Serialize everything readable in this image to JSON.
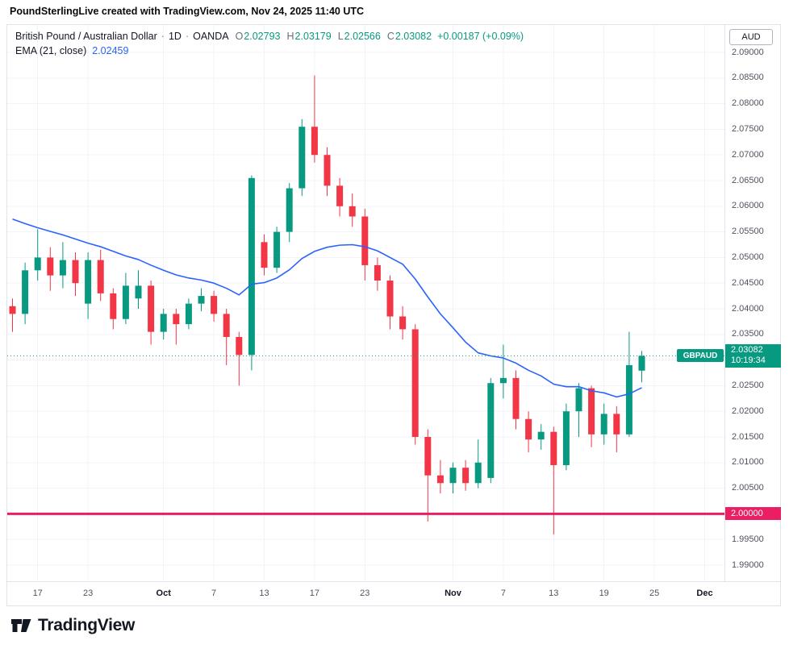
{
  "header": {
    "attribution": "PoundSterlingLive created with TradingView.com, Nov 24, 2025 11:40 UTC"
  },
  "legend": {
    "title": "British Pound / Australian Dollar",
    "separator": "·",
    "interval": "1D",
    "exchange": "OANDA",
    "open_label": "O",
    "open": "2.02793",
    "high_label": "H",
    "high": "2.03179",
    "low_label": "L",
    "low": "2.02566",
    "close_label": "C",
    "close": "2.03082",
    "change": "+0.00187 (+0.09%)",
    "ema_label": "EMA (21, close)",
    "ema_value": "2.02459"
  },
  "axis": {
    "currency": "AUD",
    "price_badge": {
      "symbol": "GBPAUD",
      "price": "2.03082",
      "countdown": "10:19:34"
    },
    "level_badge": "2.00000"
  },
  "footer": {
    "brand": "TradingView",
    "logo_icon": "tradingview-logo"
  },
  "colors": {
    "up": "#089981",
    "down": "#F23645",
    "ema": "#2962FF",
    "level_line": "#E91E63",
    "grid": "#F0F3FA",
    "dotted": "#089981"
  },
  "chart_data": {
    "type": "candlestick",
    "title": "British Pound / Australian Dollar",
    "symbol": "GBPAUD",
    "interval": "1D",
    "exchange": "OANDA",
    "ema_period": 21,
    "last_price": 2.03082,
    "level_line": 2.0,
    "y_axis": {
      "min": 1.99,
      "max": 2.09,
      "step": 0.005,
      "labels": [
        "2.09000",
        "2.08500",
        "2.08000",
        "2.07500",
        "2.07000",
        "2.06500",
        "2.06000",
        "2.05500",
        "2.05000",
        "2.04500",
        "2.04000",
        "2.03500",
        "2.03000",
        "2.02500",
        "2.02000",
        "2.01500",
        "2.01000",
        "2.00500",
        "2.00000",
        "1.99500",
        "1.99000"
      ]
    },
    "time_ticks": [
      {
        "label": "17",
        "i": 2
      },
      {
        "label": "23",
        "i": 6
      },
      {
        "label": "Oct",
        "i": 12,
        "major": true
      },
      {
        "label": "7",
        "i": 16
      },
      {
        "label": "13",
        "i": 20
      },
      {
        "label": "17",
        "i": 24
      },
      {
        "label": "23",
        "i": 28
      },
      {
        "label": "Nov",
        "i": 35,
        "major": true
      },
      {
        "label": "7",
        "i": 39
      },
      {
        "label": "13",
        "i": 43
      },
      {
        "label": "19",
        "i": 47
      },
      {
        "label": "25",
        "i": 51
      },
      {
        "label": "Dec",
        "i": 55,
        "major": true
      }
    ],
    "candles": [
      {
        "d": "Sep 15",
        "o": 2.0405,
        "h": 2.042,
        "l": 2.0355,
        "c": 2.039
      },
      {
        "d": "Sep 16",
        "o": 2.039,
        "h": 2.049,
        "l": 2.037,
        "c": 2.0475
      },
      {
        "d": "Sep 17",
        "o": 2.0475,
        "h": 2.0555,
        "l": 2.0455,
        "c": 2.05
      },
      {
        "d": "Sep 18",
        "o": 2.05,
        "h": 2.052,
        "l": 2.0435,
        "c": 2.0465
      },
      {
        "d": "Sep 19",
        "o": 2.0465,
        "h": 2.053,
        "l": 2.044,
        "c": 2.0495
      },
      {
        "d": "Sep 22",
        "o": 2.0495,
        "h": 2.051,
        "l": 2.0425,
        "c": 2.045
      },
      {
        "d": "Sep 23",
        "o": 2.041,
        "h": 2.051,
        "l": 2.038,
        "c": 2.0495
      },
      {
        "d": "Sep 24",
        "o": 2.0495,
        "h": 2.0515,
        "l": 2.0415,
        "c": 2.043
      },
      {
        "d": "Sep 25",
        "o": 2.043,
        "h": 2.044,
        "l": 2.036,
        "c": 2.038
      },
      {
        "d": "Sep 26",
        "o": 2.038,
        "h": 2.047,
        "l": 2.037,
        "c": 2.0445
      },
      {
        "d": "Sep 29",
        "o": 2.042,
        "h": 2.0475,
        "l": 2.04,
        "c": 2.0445
      },
      {
        "d": "Sep 30",
        "o": 2.0445,
        "h": 2.0455,
        "l": 2.033,
        "c": 2.0355
      },
      {
        "d": "Oct 1",
        "o": 2.0355,
        "h": 2.04,
        "l": 2.034,
        "c": 2.039
      },
      {
        "d": "Oct 2",
        "o": 2.039,
        "h": 2.04,
        "l": 2.033,
        "c": 2.037
      },
      {
        "d": "Oct 3",
        "o": 2.037,
        "h": 2.042,
        "l": 2.036,
        "c": 2.041
      },
      {
        "d": "Oct 6",
        "o": 2.041,
        "h": 2.044,
        "l": 2.0395,
        "c": 2.0425
      },
      {
        "d": "Oct 7",
        "o": 2.0425,
        "h": 2.0435,
        "l": 2.0375,
        "c": 2.039
      },
      {
        "d": "Oct 8",
        "o": 2.039,
        "h": 2.04,
        "l": 2.029,
        "c": 2.0345
      },
      {
        "d": "Oct 9",
        "o": 2.0345,
        "h": 2.0355,
        "l": 2.025,
        "c": 2.031
      },
      {
        "d": "Oct 10",
        "o": 2.031,
        "h": 2.066,
        "l": 2.028,
        "c": 2.0655
      },
      {
        "d": "Oct 13",
        "o": 2.053,
        "h": 2.0545,
        "l": 2.0465,
        "c": 2.048
      },
      {
        "d": "Oct 14",
        "o": 2.048,
        "h": 2.056,
        "l": 2.047,
        "c": 2.055
      },
      {
        "d": "Oct 15",
        "o": 2.055,
        "h": 2.0645,
        "l": 2.053,
        "c": 2.0635
      },
      {
        "d": "Oct 16",
        "o": 2.0635,
        "h": 2.077,
        "l": 2.062,
        "c": 2.0755
      },
      {
        "d": "Oct 17",
        "o": 2.0755,
        "h": 2.0855,
        "l": 2.0685,
        "c": 2.07
      },
      {
        "d": "Oct 20",
        "o": 2.07,
        "h": 2.0715,
        "l": 2.062,
        "c": 2.064
      },
      {
        "d": "Oct 21",
        "o": 2.064,
        "h": 2.0655,
        "l": 2.058,
        "c": 2.06
      },
      {
        "d": "Oct 22",
        "o": 2.06,
        "h": 2.0625,
        "l": 2.056,
        "c": 2.058
      },
      {
        "d": "Oct 23",
        "o": 2.058,
        "h": 2.0595,
        "l": 2.0455,
        "c": 2.0485
      },
      {
        "d": "Oct 24",
        "o": 2.0485,
        "h": 2.05,
        "l": 2.0435,
        "c": 2.0455
      },
      {
        "d": "Oct 27",
        "o": 2.0455,
        "h": 2.0465,
        "l": 2.036,
        "c": 2.0385
      },
      {
        "d": "Oct 28",
        "o": 2.0385,
        "h": 2.0405,
        "l": 2.034,
        "c": 2.036
      },
      {
        "d": "Oct 29",
        "o": 2.036,
        "h": 2.037,
        "l": 2.0135,
        "c": 2.015
      },
      {
        "d": "Oct 30",
        "o": 2.015,
        "h": 2.0165,
        "l": 1.9985,
        "c": 2.0075
      },
      {
        "d": "Oct 31",
        "o": 2.0075,
        "h": 2.0105,
        "l": 2.004,
        "c": 2.006
      },
      {
        "d": "Nov 3",
        "o": 2.006,
        "h": 2.01,
        "l": 2.004,
        "c": 2.009
      },
      {
        "d": "Nov 4",
        "o": 2.009,
        "h": 2.0105,
        "l": 2.0045,
        "c": 2.006
      },
      {
        "d": "Nov 5",
        "o": 2.006,
        "h": 2.0145,
        "l": 2.005,
        "c": 2.01
      },
      {
        "d": "Nov 6",
        "o": 2.007,
        "h": 2.0265,
        "l": 2.006,
        "c": 2.0255
      },
      {
        "d": "Nov 7",
        "o": 2.0255,
        "h": 2.033,
        "l": 2.0225,
        "c": 2.0265
      },
      {
        "d": "Nov 10",
        "o": 2.0265,
        "h": 2.028,
        "l": 2.0165,
        "c": 2.0185
      },
      {
        "d": "Nov 11",
        "o": 2.0185,
        "h": 2.02,
        "l": 2.012,
        "c": 2.0145
      },
      {
        "d": "Nov 12",
        "o": 2.0145,
        "h": 2.0175,
        "l": 2.0125,
        "c": 2.016
      },
      {
        "d": "Nov 13",
        "o": 2.016,
        "h": 2.017,
        "l": 1.996,
        "c": 2.0095
      },
      {
        "d": "Nov 14",
        "o": 2.0095,
        "h": 2.0215,
        "l": 2.0085,
        "c": 2.02
      },
      {
        "d": "Nov 17",
        "o": 2.02,
        "h": 2.0255,
        "l": 2.015,
        "c": 2.0245
      },
      {
        "d": "Nov 18",
        "o": 2.0245,
        "h": 2.025,
        "l": 2.013,
        "c": 2.0155
      },
      {
        "d": "Nov 19",
        "o": 2.0155,
        "h": 2.0215,
        "l": 2.0135,
        "c": 2.0195
      },
      {
        "d": "Nov 20",
        "o": 2.0195,
        "h": 2.021,
        "l": 2.012,
        "c": 2.0155
      },
      {
        "d": "Nov 21",
        "o": 2.0155,
        "h": 2.0355,
        "l": 2.015,
        "c": 2.029
      },
      {
        "d": "Nov 24",
        "o": 2.02793,
        "h": 2.03179,
        "l": 2.02566,
        "c": 2.03082
      }
    ],
    "ema": [
      2.0575,
      2.0566,
      2.0558,
      2.0551,
      2.0544,
      2.0536,
      2.0528,
      2.0521,
      2.0512,
      2.0503,
      2.0496,
      2.0485,
      2.0475,
      2.0466,
      2.046,
      2.0456,
      2.045,
      2.044,
      2.0427,
      2.0448,
      2.0451,
      2.046,
      2.0476,
      2.0498,
      2.0512,
      2.052,
      2.0524,
      2.0525,
      2.0521,
      2.0513,
      2.05,
      2.0487,
      2.0458,
      2.0423,
      2.039,
      2.0363,
      2.0335,
      2.0314,
      2.0308,
      2.0304,
      2.0294,
      2.028,
      2.0269,
      2.0253,
      2.0248,
      2.0248,
      2.024,
      2.0236,
      2.0228,
      2.0234,
      2.0246
    ]
  }
}
